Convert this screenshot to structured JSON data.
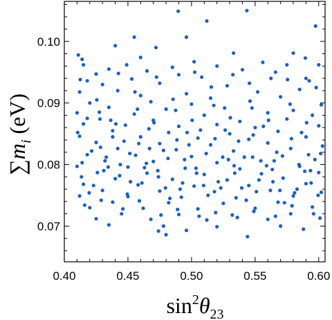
{
  "chart_data": {
    "type": "scatter",
    "title": "",
    "xlabel": "sin²θ₂₃",
    "ylabel": "∑mᵢ (eV)",
    "xlabel_parts": {
      "base": "sin",
      "sup": "2",
      "sym": "θ",
      "sub": "23"
    },
    "ylabel_parts": {
      "sym": "∑",
      "var": "m",
      "sub": "i",
      "unit": " (eV)"
    },
    "xlim": [
      0.4,
      0.605
    ],
    "ylim": [
      0.0642,
      0.1065
    ],
    "xticks": [
      0.4,
      0.45,
      0.5,
      0.55,
      0.6
    ],
    "xtick_labels": [
      "0.40",
      "0.45",
      "0.50",
      "0.55",
      "0.60"
    ],
    "yticks": [
      0.07,
      0.08,
      0.09,
      0.1
    ],
    "ytick_labels": [
      "0.07",
      "0.08",
      "0.09",
      "0.10"
    ],
    "grid": false,
    "marker_color": "#1a5fc8",
    "points": [
      [
        0.4895,
        0.1049
      ],
      [
        0.5435,
        0.105
      ],
      [
        0.512,
        0.1033
      ],
      [
        0.5975,
        0.1025
      ],
      [
        0.455,
        0.1007
      ],
      [
        0.496,
        0.1007
      ],
      [
        0.5895,
        0.0973
      ],
      [
        0.44,
        0.0993
      ],
      [
        0.472,
        0.099
      ],
      [
        0.58,
        0.0981
      ],
      [
        0.411,
        0.0978
      ],
      [
        0.414,
        0.0971
      ],
      [
        0.533,
        0.0981
      ],
      [
        0.46,
        0.0974
      ],
      [
        0.502,
        0.0967
      ],
      [
        0.449,
        0.0962
      ],
      [
        0.556,
        0.0966
      ],
      [
        0.415,
        0.0962
      ],
      [
        0.485,
        0.0958
      ],
      [
        0.52,
        0.096
      ],
      [
        0.575,
        0.0962
      ],
      [
        0.6,
        0.0962
      ],
      [
        0.435,
        0.0955
      ],
      [
        0.465,
        0.0952
      ],
      [
        0.54,
        0.0954
      ],
      [
        0.425,
        0.0947
      ],
      [
        0.49,
        0.0946
      ],
      [
        0.566,
        0.095
      ],
      [
        0.418,
        0.0936
      ],
      [
        0.453,
        0.0939
      ],
      [
        0.508,
        0.0942
      ],
      [
        0.59,
        0.094
      ],
      [
        0.43,
        0.093
      ],
      [
        0.475,
        0.0932
      ],
      [
        0.528,
        0.0928
      ],
      [
        0.598,
        0.0925
      ],
      [
        0.412,
        0.0918
      ],
      [
        0.442,
        0.092
      ],
      [
        0.496,
        0.0915
      ],
      [
        0.552,
        0.0918
      ],
      [
        0.585,
        0.0922
      ],
      [
        0.46,
        0.0912
      ],
      [
        0.515,
        0.0908
      ],
      [
        0.57,
        0.091
      ],
      [
        0.42,
        0.09
      ],
      [
        0.468,
        0.0902
      ],
      [
        0.5,
        0.0898
      ],
      [
        0.546,
        0.0903
      ],
      [
        0.602,
        0.0897
      ],
      [
        0.435,
        0.0893
      ],
      [
        0.48,
        0.089
      ],
      [
        0.526,
        0.0892
      ],
      [
        0.58,
        0.0888
      ],
      [
        0.41,
        0.0884
      ],
      [
        0.455,
        0.0882
      ],
      [
        0.51,
        0.088
      ],
      [
        0.56,
        0.0884
      ],
      [
        0.595,
        0.088
      ],
      [
        0.428,
        0.0874
      ],
      [
        0.47,
        0.0872
      ],
      [
        0.538,
        0.087
      ],
      [
        0.575,
        0.0874
      ],
      [
        0.415,
        0.0866
      ],
      [
        0.448,
        0.0864
      ],
      [
        0.49,
        0.0862
      ],
      [
        0.52,
        0.0865
      ],
      [
        0.55,
        0.086
      ],
      [
        0.6,
        0.0863
      ],
      [
        0.438,
        0.0855
      ],
      [
        0.482,
        0.0852
      ],
      [
        0.53,
        0.085
      ],
      [
        0.568,
        0.0854
      ],
      [
        0.412,
        0.0846
      ],
      [
        0.46,
        0.0845
      ],
      [
        0.505,
        0.0843
      ],
      [
        0.545,
        0.0841
      ],
      [
        0.59,
        0.0845
      ],
      [
        0.425,
        0.0836
      ],
      [
        0.475,
        0.0834
      ],
      [
        0.515,
        0.0832
      ],
      [
        0.56,
        0.0835
      ],
      [
        0.603,
        0.083
      ],
      [
        0.442,
        0.0826
      ],
      [
        0.488,
        0.0824
      ],
      [
        0.533,
        0.0822
      ],
      [
        0.578,
        0.0826
      ],
      [
        0.418,
        0.0816
      ],
      [
        0.456,
        0.0815
      ],
      [
        0.5,
        0.0813
      ],
      [
        0.548,
        0.0812
      ],
      [
        0.592,
        0.0816
      ],
      [
        0.432,
        0.0806
      ],
      [
        0.47,
        0.0805
      ],
      [
        0.52,
        0.0803
      ],
      [
        0.565,
        0.0806
      ],
      [
        0.41,
        0.0797
      ],
      [
        0.45,
        0.0796
      ],
      [
        0.495,
        0.0794
      ],
      [
        0.538,
        0.0793
      ],
      [
        0.585,
        0.0797
      ],
      [
        0.426,
        0.0787
      ],
      [
        0.465,
        0.0786
      ],
      [
        0.51,
        0.0784
      ],
      [
        0.555,
        0.0785
      ],
      [
        0.6,
        0.0787
      ],
      [
        0.44,
        0.0777
      ],
      [
        0.485,
        0.0776
      ],
      [
        0.528,
        0.0775
      ],
      [
        0.572,
        0.0778
      ],
      [
        0.415,
        0.0768
      ],
      [
        0.458,
        0.0767
      ],
      [
        0.502,
        0.0765
      ],
      [
        0.545,
        0.0766
      ],
      [
        0.59,
        0.0769
      ],
      [
        0.43,
        0.0758
      ],
      [
        0.475,
        0.0757
      ],
      [
        0.518,
        0.0756
      ],
      [
        0.562,
        0.0758
      ],
      [
        0.602,
        0.0755
      ],
      [
        0.412,
        0.0749
      ],
      [
        0.45,
        0.0748
      ],
      [
        0.492,
        0.0747
      ],
      [
        0.535,
        0.0746
      ],
      [
        0.58,
        0.0749
      ],
      [
        0.438,
        0.0739
      ],
      [
        0.482,
        0.0738
      ],
      [
        0.525,
        0.0737
      ],
      [
        0.568,
        0.0739
      ],
      [
        0.42,
        0.073
      ],
      [
        0.462,
        0.0729
      ],
      [
        0.505,
        0.0728
      ],
      [
        0.55,
        0.0729
      ],
      [
        0.595,
        0.0731
      ],
      [
        0.445,
        0.072
      ],
      [
        0.49,
        0.0719
      ],
      [
        0.532,
        0.0718
      ],
      [
        0.578,
        0.072
      ],
      [
        0.425,
        0.0712
      ],
      [
        0.468,
        0.0711
      ],
      [
        0.512,
        0.071
      ],
      [
        0.56,
        0.0711
      ],
      [
        0.601,
        0.0713
      ],
      [
        0.435,
        0.0702
      ],
      [
        0.478,
        0.07
      ],
      [
        0.52,
        0.0699
      ],
      [
        0.57,
        0.07
      ],
      [
        0.474,
        0.0692
      ],
      [
        0.496,
        0.0693
      ],
      [
        0.588,
        0.0695
      ],
      [
        0.48,
        0.0686
      ],
      [
        0.544,
        0.0683
      ],
      [
        0.418,
        0.0875
      ],
      [
        0.433,
        0.0812
      ],
      [
        0.447,
        0.0838
      ],
      [
        0.463,
        0.0795
      ],
      [
        0.478,
        0.0823
      ],
      [
        0.493,
        0.077
      ],
      [
        0.507,
        0.0856
      ],
      [
        0.523,
        0.0762
      ],
      [
        0.537,
        0.0838
      ],
      [
        0.553,
        0.0775
      ],
      [
        0.567,
        0.082
      ],
      [
        0.583,
        0.076
      ],
      [
        0.597,
        0.0808
      ],
      [
        0.423,
        0.0766
      ],
      [
        0.438,
        0.0845
      ],
      [
        0.452,
        0.0772
      ],
      [
        0.467,
        0.0826
      ],
      [
        0.483,
        0.0745
      ],
      [
        0.498,
        0.0832
      ],
      [
        0.513,
        0.075
      ],
      [
        0.529,
        0.0808
      ],
      [
        0.543,
        0.0742
      ],
      [
        0.559,
        0.0798
      ],
      [
        0.573,
        0.0738
      ],
      [
        0.589,
        0.0789
      ],
      [
        0.414,
        0.0803
      ],
      [
        0.429,
        0.0742
      ],
      [
        0.444,
        0.08
      ],
      [
        0.459,
        0.0741
      ],
      [
        0.474,
        0.078
      ],
      [
        0.489,
        0.0727
      ],
      [
        0.504,
        0.0786
      ],
      [
        0.519,
        0.0722
      ],
      [
        0.534,
        0.0786
      ],
      [
        0.549,
        0.0724
      ],
      [
        0.564,
        0.0772
      ],
      [
        0.579,
        0.0733
      ],
      [
        0.594,
        0.077
      ],
      [
        0.416,
        0.0734
      ],
      [
        0.431,
        0.079
      ],
      [
        0.446,
        0.0728
      ],
      [
        0.461,
        0.077
      ],
      [
        0.476,
        0.0718
      ],
      [
        0.491,
        0.076
      ],
      [
        0.506,
        0.0716
      ],
      [
        0.521,
        0.0772
      ],
      [
        0.536,
        0.0714
      ],
      [
        0.551,
        0.0756
      ],
      [
        0.566,
        0.0716
      ],
      [
        0.581,
        0.0754
      ],
      [
        0.596,
        0.072
      ],
      [
        0.4105,
        0.0852
      ],
      [
        0.4255,
        0.0905
      ],
      [
        0.4405,
        0.0866
      ],
      [
        0.4555,
        0.0918
      ],
      [
        0.4705,
        0.0868
      ],
      [
        0.4855,
        0.0906
      ],
      [
        0.5005,
        0.0872
      ],
      [
        0.5155,
        0.0926
      ],
      [
        0.5305,
        0.0876
      ],
      [
        0.5455,
        0.0932
      ],
      [
        0.5605,
        0.0872
      ],
      [
        0.5755,
        0.0938
      ],
      [
        0.5905,
        0.0868
      ],
      [
        0.4215,
        0.0822
      ],
      [
        0.4365,
        0.0872
      ],
      [
        0.4515,
        0.0818
      ],
      [
        0.4665,
        0.0858
      ],
      [
        0.4815,
        0.081
      ],
      [
        0.4965,
        0.0852
      ],
      [
        0.5115,
        0.0818
      ],
      [
        0.5265,
        0.0856
      ],
      [
        0.5415,
        0.0812
      ],
      [
        0.5565,
        0.0862
      ],
      [
        0.5715,
        0.0814
      ],
      [
        0.5865,
        0.0852
      ],
      [
        0.6015,
        0.0818
      ],
      [
        0.4135,
        0.078
      ],
      [
        0.4285,
        0.0828
      ],
      [
        0.4435,
        0.0782
      ],
      [
        0.4585,
        0.0834
      ],
      [
        0.4735,
        0.079
      ],
      [
        0.4885,
        0.084
      ],
      [
        0.5035,
        0.0794
      ],
      [
        0.5185,
        0.0842
      ],
      [
        0.5335,
        0.0798
      ],
      [
        0.5485,
        0.0848
      ],
      [
        0.5635,
        0.0792
      ],
      [
        0.5785,
        0.0842
      ],
      [
        0.5935,
        0.079
      ],
      [
        0.4195,
        0.0754
      ],
      [
        0.4345,
        0.0796
      ],
      [
        0.4495,
        0.0752
      ],
      [
        0.4645,
        0.0802
      ],
      [
        0.4795,
        0.0762
      ],
      [
        0.4945,
        0.0808
      ],
      [
        0.5095,
        0.0766
      ],
      [
        0.5245,
        0.0812
      ],
      [
        0.5395,
        0.0762
      ],
      [
        0.5545,
        0.0806
      ],
      [
        0.5695,
        0.0758
      ],
      [
        0.5845,
        0.08
      ],
      [
        0.5995,
        0.075
      ],
      [
        0.4125,
        0.0938
      ],
      [
        0.4275,
        0.0885
      ],
      [
        0.4425,
        0.0948
      ],
      [
        0.4575,
        0.089
      ],
      [
        0.4725,
        0.0942
      ],
      [
        0.4875,
        0.0888
      ],
      [
        0.5025,
        0.095
      ],
      [
        0.5175,
        0.0896
      ],
      [
        0.5325,
        0.0946
      ],
      [
        0.5475,
        0.0892
      ],
      [
        0.5625,
        0.094
      ],
      [
        0.5775,
        0.0898
      ],
      [
        0.5925,
        0.0936
      ]
    ]
  }
}
